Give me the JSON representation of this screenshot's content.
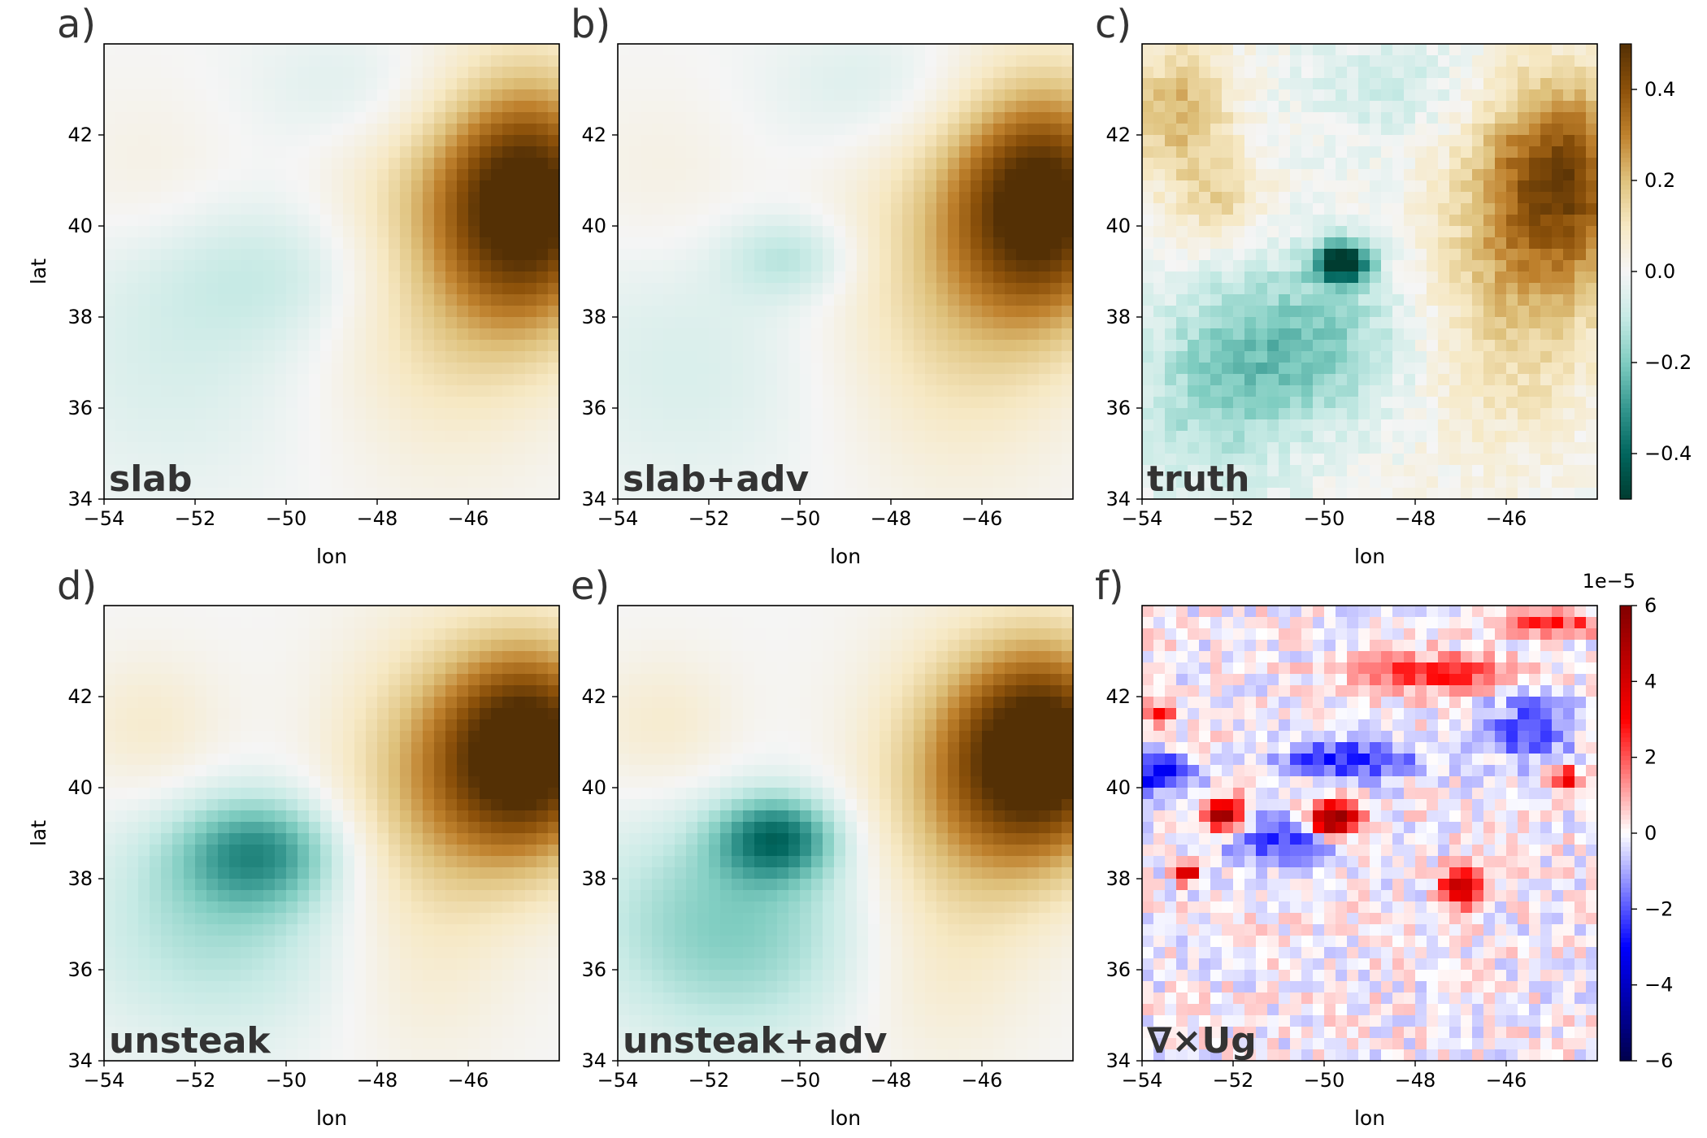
{
  "chart_data": [
    {
      "type": "heatmap",
      "panel_letter": "a)",
      "label": "slab",
      "xlabel": "lon",
      "ylabel": "lat",
      "xlim": [
        -54,
        -44
      ],
      "ylim": [
        34,
        44
      ],
      "xticks": [
        "−54",
        "−52",
        "−50",
        "−48",
        "−46"
      ],
      "yticks": [
        "34",
        "36",
        "38",
        "40",
        "42"
      ],
      "colormap": "BrBG",
      "vlim": [
        -0.5,
        0.5
      ],
      "features": [
        {
          "lon": -44.6,
          "lat": 40.5,
          "value": 0.5,
          "spread_lon": 1.9,
          "spread_lat": 2.6
        },
        {
          "lon": -46.5,
          "lat": 39.5,
          "value": 0.18,
          "spread_lon": 2.5,
          "spread_lat": 4.0
        },
        {
          "lon": -50.0,
          "lat": 39.0,
          "value": -0.09,
          "spread_lon": 3.0,
          "spread_lat": 1.6
        },
        {
          "lon": -48.0,
          "lat": 43.0,
          "value": -0.08,
          "spread_lon": 2.5,
          "spread_lat": 1.5
        },
        {
          "lon": -52.5,
          "lat": 37.0,
          "value": -0.06,
          "spread_lon": 3.0,
          "spread_lat": 3.0
        },
        {
          "lon": -53.0,
          "lat": 41.0,
          "value": 0.04,
          "spread_lon": 2.0,
          "spread_lat": 2.0
        }
      ]
    },
    {
      "type": "heatmap",
      "panel_letter": "b)",
      "label": "slab+adv",
      "xlabel": "lon",
      "ylabel": "",
      "xlim": [
        -54,
        -44
      ],
      "ylim": [
        34,
        44
      ],
      "xticks": [
        "−54",
        "−52",
        "−50",
        "−48",
        "−46"
      ],
      "yticks": [
        "34",
        "36",
        "38",
        "40",
        "42"
      ],
      "colormap": "BrBG",
      "vlim": [
        -0.5,
        0.5
      ],
      "features": [
        {
          "lon": -44.6,
          "lat": 40.5,
          "value": 0.5,
          "spread_lon": 1.9,
          "spread_lat": 2.5
        },
        {
          "lon": -46.5,
          "lat": 39.0,
          "value": 0.17,
          "spread_lon": 2.5,
          "spread_lat": 4.0
        },
        {
          "lon": -50.2,
          "lat": 39.3,
          "value": -0.12,
          "spread_lon": 1.4,
          "spread_lat": 0.9
        },
        {
          "lon": -48.0,
          "lat": 43.0,
          "value": -0.08,
          "spread_lon": 2.5,
          "spread_lat": 1.5
        },
        {
          "lon": -52.5,
          "lat": 37.0,
          "value": -0.06,
          "spread_lon": 3.0,
          "spread_lat": 3.0
        },
        {
          "lon": -53.0,
          "lat": 41.0,
          "value": 0.04,
          "spread_lon": 2.0,
          "spread_lat": 2.0
        }
      ]
    },
    {
      "type": "heatmap",
      "panel_letter": "c)",
      "label": "truth",
      "xlabel": "lon",
      "ylabel": "",
      "xlim": [
        -54,
        -44
      ],
      "ylim": [
        34,
        44
      ],
      "xticks": [
        "−54",
        "−52",
        "−50",
        "−48",
        "−46"
      ],
      "yticks": [
        "34",
        "36",
        "38",
        "40",
        "42"
      ],
      "colormap": "BrBG",
      "vlim": [
        -0.5,
        0.5
      ],
      "noise": 0.08,
      "features": [
        {
          "lon": -44.8,
          "lat": 41.0,
          "value": 0.42,
          "spread_lon": 1.8,
          "spread_lat": 2.3
        },
        {
          "lon": -46.0,
          "lat": 38.0,
          "value": 0.15,
          "spread_lon": 2.0,
          "spread_lat": 3.0
        },
        {
          "lon": -49.6,
          "lat": 39.2,
          "value": -0.55,
          "spread_lon": 0.6,
          "spread_lat": 0.45
        },
        {
          "lon": -50.5,
          "lat": 37.5,
          "value": -0.2,
          "spread_lon": 2.5,
          "spread_lat": 1.8
        },
        {
          "lon": -52.5,
          "lat": 36.0,
          "value": -0.12,
          "spread_lon": 2.0,
          "spread_lat": 2.0
        },
        {
          "lon": -53.2,
          "lat": 42.5,
          "value": 0.22,
          "spread_lon": 1.2,
          "spread_lat": 1.5
        },
        {
          "lon": -52.3,
          "lat": 40.5,
          "value": 0.14,
          "spread_lon": 1.0,
          "spread_lat": 1.0
        },
        {
          "lon": -48.5,
          "lat": 43.0,
          "value": -0.08,
          "spread_lon": 2.0,
          "spread_lat": 1.2
        }
      ]
    },
    {
      "type": "heatmap",
      "panel_letter": "d)",
      "label": "unsteak",
      "xlabel": "lon",
      "ylabel": "lat",
      "xlim": [
        -54,
        -44
      ],
      "ylim": [
        34,
        44
      ],
      "xticks": [
        "−54",
        "−52",
        "−50",
        "−48",
        "−46"
      ],
      "yticks": [
        "34",
        "36",
        "38",
        "40",
        "42"
      ],
      "colormap": "BrBG",
      "vlim": [
        -0.5,
        0.5
      ],
      "features": [
        {
          "lon": -44.6,
          "lat": 40.8,
          "value": 0.55,
          "spread_lon": 1.9,
          "spread_lat": 2.3
        },
        {
          "lon": -46.8,
          "lat": 40.0,
          "value": 0.2,
          "spread_lon": 2.2,
          "spread_lat": 3.2
        },
        {
          "lon": -50.6,
          "lat": 38.6,
          "value": -0.26,
          "spread_lon": 1.8,
          "spread_lat": 1.2
        },
        {
          "lon": -51.5,
          "lat": 37.0,
          "value": -0.14,
          "spread_lon": 3.0,
          "spread_lat": 2.5
        },
        {
          "lon": -53.0,
          "lat": 41.3,
          "value": 0.08,
          "spread_lon": 1.7,
          "spread_lat": 1.6
        },
        {
          "lon": -47.0,
          "lat": 35.5,
          "value": 0.04,
          "spread_lon": 2.0,
          "spread_lat": 2.0
        }
      ]
    },
    {
      "type": "heatmap",
      "panel_letter": "e)",
      "label": "unsteak+adv",
      "xlabel": "lon",
      "ylabel": "",
      "xlim": [
        -54,
        -44
      ],
      "ylim": [
        34,
        44
      ],
      "xticks": [
        "−54",
        "−52",
        "−50",
        "−48",
        "−46"
      ],
      "yticks": [
        "34",
        "36",
        "38",
        "40",
        "42"
      ],
      "colormap": "BrBG",
      "vlim": [
        -0.5,
        0.5
      ],
      "features": [
        {
          "lon": -44.6,
          "lat": 40.8,
          "value": 0.55,
          "spread_lon": 1.9,
          "spread_lat": 2.3
        },
        {
          "lon": -46.5,
          "lat": 39.8,
          "value": 0.2,
          "spread_lon": 2.2,
          "spread_lat": 3.2
        },
        {
          "lon": -50.5,
          "lat": 38.9,
          "value": -0.32,
          "spread_lon": 1.3,
          "spread_lat": 0.9
        },
        {
          "lon": -51.5,
          "lat": 37.0,
          "value": -0.2,
          "spread_lon": 3.0,
          "spread_lat": 2.5
        },
        {
          "lon": -53.0,
          "lat": 41.3,
          "value": 0.08,
          "spread_lon": 1.7,
          "spread_lat": 1.6
        },
        {
          "lon": -47.0,
          "lat": 35.5,
          "value": 0.05,
          "spread_lon": 2.0,
          "spread_lat": 2.0
        }
      ]
    },
    {
      "type": "heatmap",
      "panel_letter": "f)",
      "label": "∇×Ug",
      "xlabel": "lon",
      "ylabel": "",
      "xlim": [
        -54,
        -44
      ],
      "ylim": [
        34,
        44
      ],
      "xticks": [
        "−54",
        "−52",
        "−50",
        "−48",
        "−46"
      ],
      "yticks": [
        "34",
        "36",
        "38",
        "40",
        "42"
      ],
      "colormap": "seismic",
      "vlim": [
        -6,
        6
      ],
      "scale_label": "1e−5",
      "noise": 1.6,
      "features": [
        {
          "lon": -49.8,
          "lat": 39.3,
          "value": 6.5,
          "spread_lon": 0.55,
          "spread_lat": 0.35
        },
        {
          "lon": -52.2,
          "lat": 39.4,
          "value": 6.0,
          "spread_lon": 0.45,
          "spread_lat": 0.35
        },
        {
          "lon": -47.0,
          "lat": 37.8,
          "value": 5.5,
          "spread_lon": 0.4,
          "spread_lat": 0.4
        },
        {
          "lon": -53.0,
          "lat": 38.1,
          "value": 4.5,
          "spread_lon": 0.25,
          "spread_lat": 0.2
        },
        {
          "lon": -44.7,
          "lat": 40.2,
          "value": 3.5,
          "spread_lon": 0.3,
          "spread_lat": 0.3
        },
        {
          "lon": -53.6,
          "lat": 41.6,
          "value": 3.0,
          "spread_lon": 0.3,
          "spread_lat": 0.3
        },
        {
          "lon": -49.5,
          "lat": 40.6,
          "value": -2.8,
          "spread_lon": 1.5,
          "spread_lat": 0.4
        },
        {
          "lon": -51.0,
          "lat": 38.9,
          "value": -2.5,
          "spread_lon": 1.2,
          "spread_lat": 0.5
        },
        {
          "lon": -53.6,
          "lat": 40.3,
          "value": -3.5,
          "spread_lon": 0.8,
          "spread_lat": 0.4
        },
        {
          "lon": -47.5,
          "lat": 42.5,
          "value": 2.8,
          "spread_lon": 1.8,
          "spread_lat": 0.4
        },
        {
          "lon": -45.5,
          "lat": 41.3,
          "value": -2.0,
          "spread_lon": 1.0,
          "spread_lat": 0.8
        },
        {
          "lon": -45.0,
          "lat": 43.6,
          "value": 2.5,
          "spread_lon": 1.2,
          "spread_lat": 0.3
        }
      ]
    }
  ],
  "colorbars": [
    {
      "ticks": [
        "0.4",
        "0.2",
        "0.0",
        "−0.2",
        "−0.4"
      ],
      "tick_values": [
        0.4,
        0.2,
        0.0,
        -0.2,
        -0.4
      ],
      "range": [
        -0.5,
        0.5
      ],
      "colormap": "BrBG"
    },
    {
      "ticks": [
        "6",
        "4",
        "2",
        "0",
        "−2",
        "−4",
        "−6"
      ],
      "tick_values": [
        6,
        4,
        2,
        0,
        -2,
        -4,
        -6
      ],
      "range": [
        -6,
        6
      ],
      "colormap": "seismic",
      "scale_label": "1e−5"
    }
  ],
  "colors": {
    "brbg": [
      "#003c30",
      "#01665e",
      "#35978f",
      "#80cdc1",
      "#c7eae5",
      "#f5f5f5",
      "#f6e8c3",
      "#dfc27d",
      "#bf812d",
      "#8c510a",
      "#543005"
    ],
    "seismic": [
      "#00004c",
      "#0000ff",
      "#ffffff",
      "#ff0000",
      "#800000"
    ],
    "text": "#333333"
  }
}
